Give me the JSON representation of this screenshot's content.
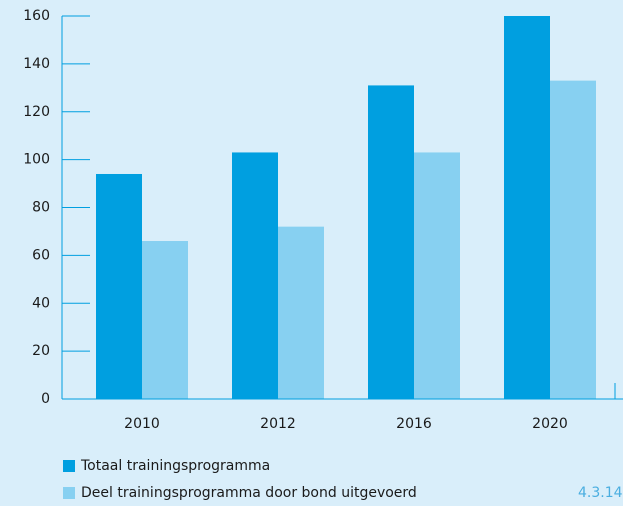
{
  "chart_data": {
    "type": "bar",
    "categories": [
      "2010",
      "2012",
      "2016",
      "2020"
    ],
    "series": [
      {
        "name": "Totaal trainingsprogramma",
        "color": "#009fe0",
        "values": [
          94,
          103,
          131,
          160
        ]
      },
      {
        "name": "Deel trainingsprogramma door bond uitgevoerd",
        "color": "#87d0f1",
        "values": [
          66,
          72,
          103,
          133
        ]
      }
    ],
    "ylim": [
      0,
      160
    ],
    "yticks": [
      0,
      20,
      40,
      60,
      80,
      100,
      120,
      140,
      160
    ],
    "grid": false,
    "legend": "bottom",
    "annotation": "4.3.14"
  }
}
